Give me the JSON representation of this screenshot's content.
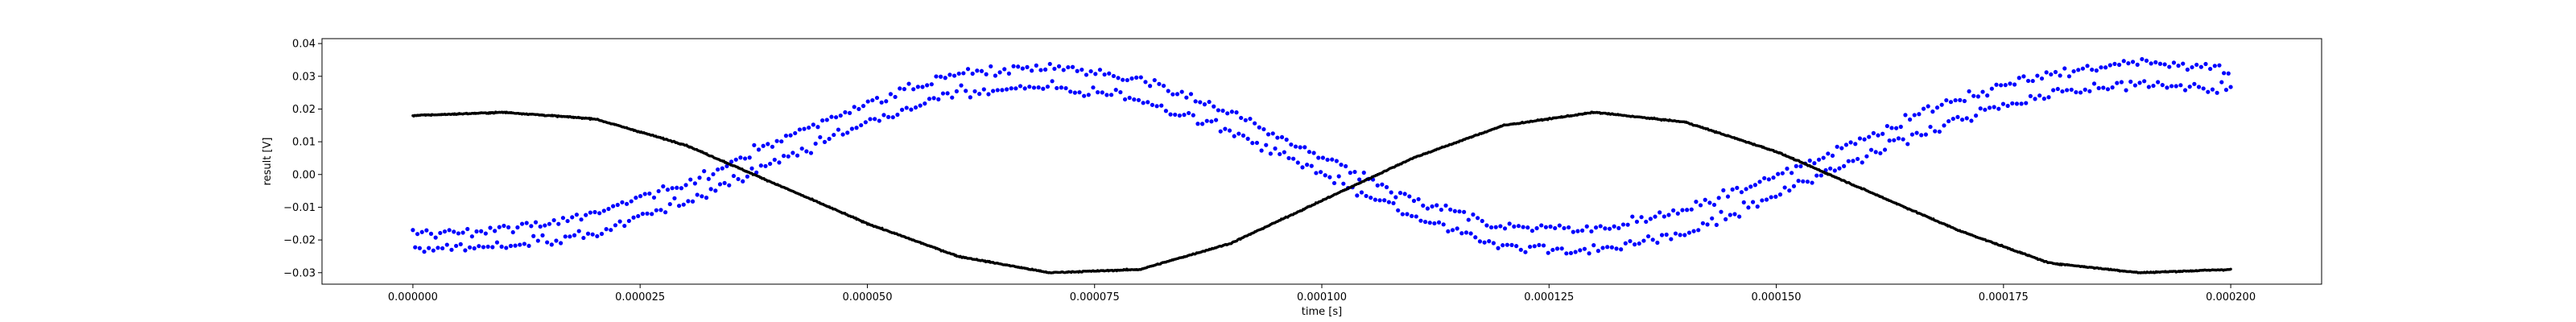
{
  "chart_data": {
    "type": "scatter",
    "title": "",
    "xlabel": "time [s]",
    "ylabel": "result [V]",
    "xlim": [
      -1e-05,
      0.00021
    ],
    "ylim": [
      -0.0335,
      0.0415
    ],
    "grid": false,
    "legend": "none",
    "xticks": [
      0,
      2.5e-05,
      5e-05,
      7.5e-05,
      0.0001,
      0.000125,
      0.00015,
      0.000175,
      0.0002
    ],
    "xtick_labels": [
      "0.000000",
      "0.000025",
      "0.000050",
      "0.000075",
      "0.000100",
      "0.000125",
      "0.000150",
      "0.000175",
      "0.000200"
    ],
    "yticks": [
      -0.03,
      -0.02,
      -0.01,
      0.0,
      0.01,
      0.02,
      0.03,
      0.04
    ],
    "ytick_labels": [
      "−0.03",
      "−0.02",
      "−0.01",
      "0.00",
      "0.01",
      "0.02",
      "0.03",
      "0.04"
    ],
    "series": [
      {
        "color": "#0000ff",
        "marker_radius": 2.6,
        "x_start": 0,
        "x_end": 0.0002,
        "count": 800,
        "model": "two interleaved noisy sinusoids, period 0.000125 s, amplitude ~0.027 V, offset ~0.004 V, band ~0.006 V apart, noise ~0.002 V",
        "x": [
          0,
          1e-05,
          2e-05,
          3e-05,
          4e-05,
          5e-05,
          6e-05,
          7e-05,
          8e-05,
          9e-05,
          0.0001,
          0.00011,
          0.00012,
          0.00013,
          0.00014,
          0.00015,
          0.00016,
          0.00017,
          0.00018,
          0.00019,
          0.0002
        ],
        "y_upper": [
          -0.018,
          -0.017,
          -0.012,
          -0.003,
          0.01,
          0.022,
          0.031,
          0.033,
          0.029,
          0.019,
          0.005,
          -0.008,
          -0.016,
          -0.017,
          -0.011,
          -0.001,
          0.012,
          0.023,
          0.031,
          0.034,
          0.032
        ],
        "y_lower": [
          -0.023,
          -0.022,
          -0.018,
          -0.008,
          0.004,
          0.016,
          0.025,
          0.027,
          0.023,
          0.013,
          0.0,
          -0.013,
          -0.022,
          -0.023,
          -0.018,
          -0.006,
          0.006,
          0.017,
          0.025,
          0.028,
          0.026
        ]
      },
      {
        "color": "#000000",
        "marker_radius": 1.7,
        "x_start": 0,
        "x_end": 0.0002,
        "count": 2000,
        "x": [
          0,
          1e-05,
          2e-05,
          3e-05,
          4e-05,
          5e-05,
          6e-05,
          7e-05,
          8e-05,
          9e-05,
          0.0001,
          0.00011,
          0.00012,
          0.00013,
          0.00014,
          0.00015,
          0.00016,
          0.00017,
          0.00018,
          0.00019,
          0.0002
        ],
        "y": [
          0.018,
          0.019,
          0.017,
          0.009,
          -0.003,
          -0.015,
          -0.025,
          -0.03,
          -0.029,
          -0.021,
          -0.008,
          0.005,
          0.015,
          0.019,
          0.016,
          0.007,
          -0.005,
          -0.017,
          -0.027,
          -0.03,
          -0.029
        ]
      }
    ]
  }
}
